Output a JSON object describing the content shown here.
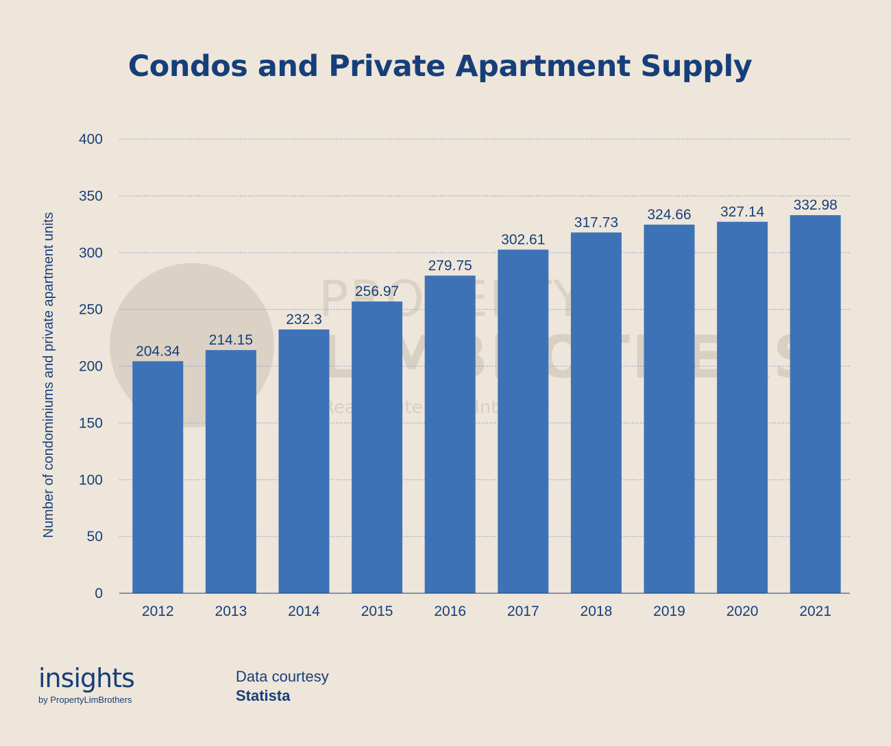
{
  "header": {
    "title": "Condos and Private Apartment Supply"
  },
  "watermark": {
    "line1": "PROPERTY",
    "line2": "LIMBROTHERS",
    "tagline": "Real Estate With Integrity"
  },
  "footer": {
    "brand_name": "insights",
    "brand_byline": "by PropertyLimBrothers",
    "source_label": "Data courtesy",
    "source_name": "Statista"
  },
  "colors": {
    "background": "#EEE6DA",
    "bar": "#3E72B6",
    "text": "#163F7A",
    "gridline": "#8EA1C3"
  },
  "chart_data": {
    "type": "bar",
    "categories": [
      "2012",
      "2013",
      "2014",
      "2015",
      "2016",
      "2017",
      "2018",
      "2019",
      "2020",
      "2021"
    ],
    "values": [
      204.34,
      214.15,
      232.3,
      256.97,
      279.75,
      302.61,
      317.73,
      324.66,
      327.14,
      332.98
    ],
    "data_labels": [
      "204.34",
      "214.15",
      "232.3",
      "256.97",
      "279.75",
      "302.61",
      "317.73",
      "324.66",
      "327.14",
      "332.98"
    ],
    "title": "Condos and Private Apartment Supply",
    "xlabel": "",
    "ylabel": "Number of condominiums and private apartment units",
    "ylim": [
      0,
      400
    ],
    "yticks": [
      0,
      50,
      100,
      150,
      200,
      250,
      300,
      350,
      400
    ],
    "grid": true,
    "legend": "none"
  }
}
